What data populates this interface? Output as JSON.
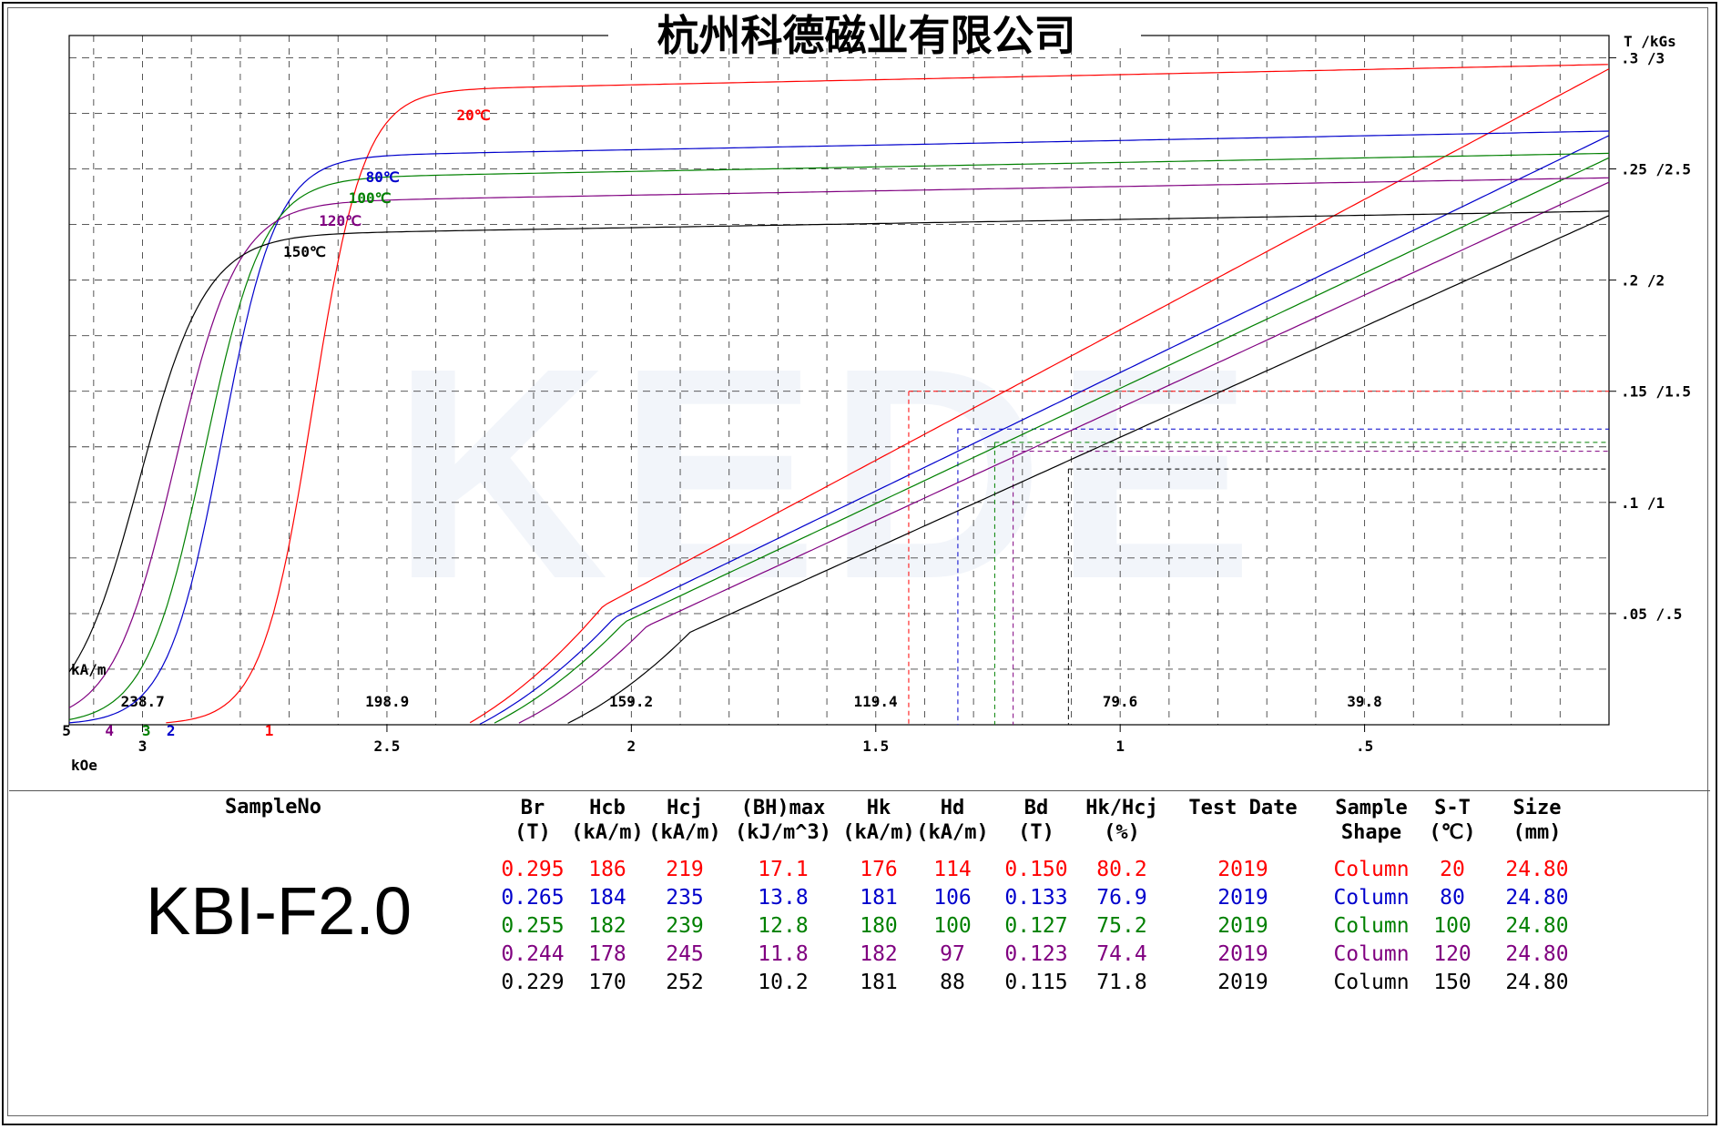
{
  "title": "杭州科德磁业有限公司",
  "watermark": "KEDE",
  "chart_data": {
    "type": "line",
    "title": "杭州科德磁业有限公司",
    "x_unit_top": "kA/m",
    "x_unit_bottom": "kOe",
    "y_unit": "T /kGs",
    "xlim_koe": [
      3.15,
      0.0
    ],
    "ylim_t": [
      0.0,
      0.31
    ],
    "x_ticks_koe": [
      {
        "value": 3.0,
        "label": "3"
      },
      {
        "value": 2.5,
        "label": "2.5"
      },
      {
        "value": 2.0,
        "label": "2"
      },
      {
        "value": 1.5,
        "label": "1.5"
      },
      {
        "value": 1.0,
        "label": "1"
      },
      {
        "value": 0.5,
        "label": ".5"
      }
    ],
    "x_ticks_kam": [
      {
        "value": 238.7,
        "label": "238.7"
      },
      {
        "value": 198.9,
        "label": "198.9"
      },
      {
        "value": 159.2,
        "label": "159.2"
      },
      {
        "value": 119.4,
        "label": "119.4"
      },
      {
        "value": 79.6,
        "label": "79.6"
      },
      {
        "value": 39.8,
        "label": "39.8"
      }
    ],
    "y_ticks": [
      {
        "value": 0.3,
        "label": ".3 /3"
      },
      {
        "value": 0.25,
        "label": ".25 /2.5"
      },
      {
        "value": 0.2,
        "label": ".2 /2"
      },
      {
        "value": 0.15,
        "label": ".15 /1.5"
      },
      {
        "value": 0.1,
        "label": ".1 /1"
      },
      {
        "value": 0.05,
        "label": ".05 /.5"
      }
    ],
    "grid": true,
    "series": [
      {
        "name": "20℃",
        "marker": "1",
        "color": "#ff0000",
        "br": 0.295,
        "hcb_kam": 186,
        "hcj_kam": 219,
        "hk_kam": 176,
        "bd": 0.15,
        "hd_kam": 114
      },
      {
        "name": "80℃",
        "marker": "2",
        "color": "#0000cc",
        "br": 0.265,
        "hcb_kam": 184,
        "hcj_kam": 235,
        "hk_kam": 181,
        "bd": 0.133,
        "hd_kam": 106
      },
      {
        "name": "100℃",
        "marker": "3",
        "color": "#008000",
        "br": 0.255,
        "hcb_kam": 182,
        "hcj_kam": 239,
        "hk_kam": 180,
        "bd": 0.127,
        "hd_kam": 100
      },
      {
        "name": "120℃",
        "marker": "4",
        "color": "#800080",
        "br": 0.244,
        "hcb_kam": 178,
        "hcj_kam": 245,
        "hk_kam": 182,
        "bd": 0.123,
        "hd_kam": 97
      },
      {
        "name": "150℃",
        "marker": "5",
        "color": "#000000",
        "br": 0.229,
        "hcb_kam": 170,
        "hcj_kam": 252,
        "hk_kam": 181,
        "bd": 0.115,
        "hd_kam": 88
      }
    ]
  },
  "table": {
    "sample_label": "SampleNo",
    "sample_no": "KBI-F2.0",
    "headers": [
      {
        "l1": "Br",
        "l2": "(T)"
      },
      {
        "l1": "Hcb",
        "l2": "(kA/m)"
      },
      {
        "l1": "Hcj",
        "l2": "(kA/m)"
      },
      {
        "l1": "(BH)max",
        "l2": "(kJ/m^3)"
      },
      {
        "l1": "Hk",
        "l2": "(kA/m)"
      },
      {
        "l1": "Hd",
        "l2": "(kA/m)"
      },
      {
        "l1": "Bd",
        "l2": "(T)"
      },
      {
        "l1": "Hk/Hcj",
        "l2": "(%)"
      },
      {
        "l1": "Test Date",
        "l2": ""
      },
      {
        "l1": "Sample",
        "l2": "Shape"
      },
      {
        "l1": "S-T",
        "l2": "(℃)"
      },
      {
        "l1": "Size",
        "l2": "(mm)"
      }
    ],
    "rows": [
      {
        "color": "#ff0000",
        "cells": [
          "0.295",
          "186",
          "219",
          "17.1",
          "176",
          "114",
          "0.150",
          "80.2",
          "2019",
          "Column",
          "20",
          "24.80"
        ]
      },
      {
        "color": "#0000cc",
        "cells": [
          "0.265",
          "184",
          "235",
          "13.8",
          "181",
          "106",
          "0.133",
          "76.9",
          "2019",
          "Column",
          "80",
          "24.80"
        ]
      },
      {
        "color": "#008000",
        "cells": [
          "0.255",
          "182",
          "239",
          "12.8",
          "180",
          "100",
          "0.127",
          "75.2",
          "2019",
          "Column",
          "100",
          "24.80"
        ]
      },
      {
        "color": "#800080",
        "cells": [
          "0.244",
          "178",
          "245",
          "11.8",
          "182",
          "97",
          "0.123",
          "74.4",
          "2019",
          "Column",
          "120",
          "24.80"
        ]
      },
      {
        "color": "#000000",
        "cells": [
          "0.229",
          "170",
          "252",
          "10.2",
          "181",
          "88",
          "0.115",
          "71.8",
          "2019",
          "Column",
          "150",
          "24.80"
        ]
      }
    ]
  }
}
